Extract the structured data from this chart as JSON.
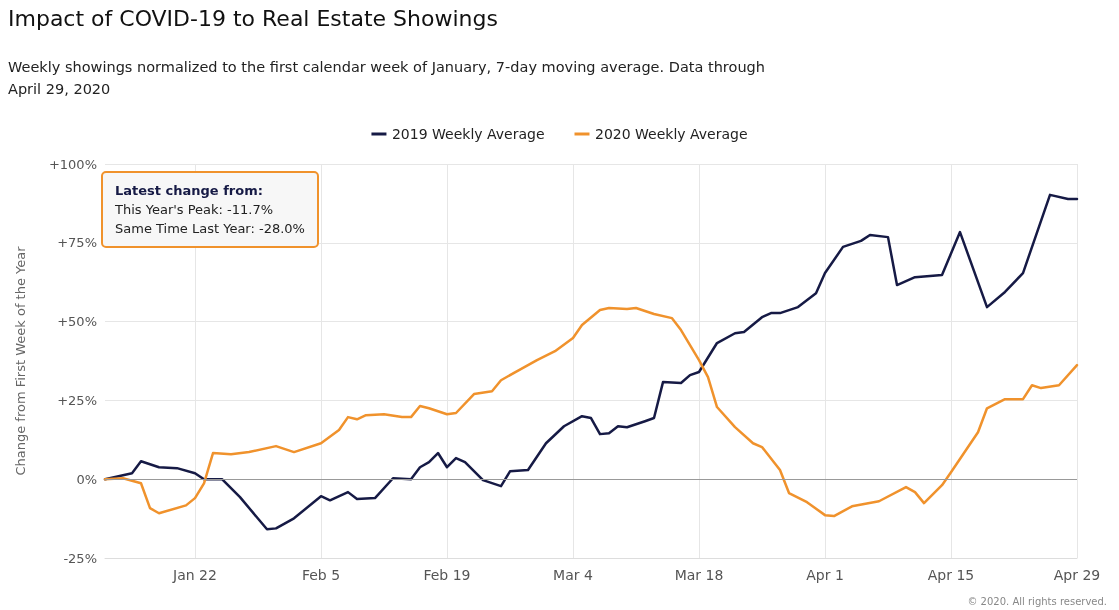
{
  "chart_data": {
    "type": "line",
    "title": "Impact of COVID-19 to Real Estate Showings",
    "subtitle": "Weekly showings normalized to the first calendar week of January, 7-day moving average. Data through April 29, 2020",
    "ylabel": "Change from First Week of the Year",
    "annotations": [
      "Latest change from:",
      "This Year's Peak: -11.7%",
      "Same Time Last Year: -28.0%",
      "© 2020. All rights reserved."
    ],
    "series": [
      {
        "name": "2019 Weekly Average",
        "color": "#161a45",
        "x": [
          "2020-01-12",
          "2020-01-15",
          "2020-01-16",
          "2020-01-18",
          "2020-01-20",
          "2020-01-22",
          "2020-01-23",
          "2020-01-25",
          "2020-01-27",
          "2020-01-30",
          "2020-01-31",
          "2020-02-02",
          "2020-02-05",
          "2020-02-06",
          "2020-02-08",
          "2020-02-09",
          "2020-02-11",
          "2020-02-13",
          "2020-02-15",
          "2020-02-16",
          "2020-02-17",
          "2020-02-18",
          "2020-02-19",
          "2020-02-20",
          "2020-02-21",
          "2020-02-23",
          "2020-02-25",
          "2020-02-26",
          "2020-02-28",
          "2020-03-01",
          "2020-03-03",
          "2020-03-05",
          "2020-03-06",
          "2020-03-07",
          "2020-03-08",
          "2020-03-09",
          "2020-03-10",
          "2020-03-12",
          "2020-03-13",
          "2020-03-14",
          "2020-03-16",
          "2020-03-17",
          "2020-03-18",
          "2020-03-20",
          "2020-03-22",
          "2020-03-23",
          "2020-03-25",
          "2020-03-26",
          "2020-03-27",
          "2020-03-29",
          "2020-03-31",
          "2020-04-01",
          "2020-04-03",
          "2020-04-05",
          "2020-04-06",
          "2020-04-08",
          "2020-04-09",
          "2020-04-11",
          "2020-04-14",
          "2020-04-16",
          "2020-04-19",
          "2020-04-21",
          "2020-04-23",
          "2020-04-26",
          "2020-04-28",
          "2020-04-29"
        ],
        "values": [
          0,
          1.9,
          5.7,
          3.8,
          3.5,
          1.9,
          0,
          0,
          -5.7,
          -15.9,
          -15.6,
          -12.4,
          -5.4,
          -6.7,
          -4.1,
          -6.3,
          -6,
          0.3,
          0,
          3.8,
          5.4,
          8.3,
          3.8,
          6.7,
          5.4,
          -0.3,
          -2.2,
          2.5,
          2.9,
          11.4,
          16.8,
          20,
          19.4,
          14.3,
          14.6,
          16.8,
          16.5,
          18.4,
          19.4,
          30.8,
          30.5,
          33,
          34,
          43.2,
          46.3,
          46.7,
          51.4,
          52.7,
          52.7,
          54.6,
          59,
          65.4,
          73.7,
          75.6,
          77.5,
          76.8,
          61.6,
          64.1,
          64.8,
          78.4,
          54.6,
          59.4,
          65.4,
          90.2,
          88.9,
          88.9
        ]
      },
      {
        "name": "2020 Weekly Average",
        "color": "#f0922c",
        "x": [
          "2020-01-12",
          "2020-01-14",
          "2020-01-16",
          "2020-01-17",
          "2020-01-18",
          "2020-01-21",
          "2020-01-22",
          "2020-01-23",
          "2020-01-24",
          "2020-01-26",
          "2020-01-28",
          "2020-01-31",
          "2020-02-02",
          "2020-02-05",
          "2020-02-07",
          "2020-02-08",
          "2020-02-09",
          "2020-02-10",
          "2020-02-12",
          "2020-02-14",
          "2020-02-15",
          "2020-02-16",
          "2020-02-17",
          "2020-02-19",
          "2020-02-20",
          "2020-02-22",
          "2020-02-24",
          "2020-02-25",
          "2020-02-27",
          "2020-02-29",
          "2020-03-02",
          "2020-03-04",
          "2020-03-05",
          "2020-03-07",
          "2020-03-08",
          "2020-03-10",
          "2020-03-11",
          "2020-03-13",
          "2020-03-15",
          "2020-03-16",
          "2020-03-18",
          "2020-03-19",
          "2020-03-20",
          "2020-03-22",
          "2020-03-24",
          "2020-03-25",
          "2020-03-27",
          "2020-03-28",
          "2020-03-30",
          "2020-04-01",
          "2020-04-02",
          "2020-04-04",
          "2020-04-07",
          "2020-04-10",
          "2020-04-11",
          "2020-04-12",
          "2020-04-14",
          "2020-04-15",
          "2020-04-18",
          "2020-04-19",
          "2020-04-21",
          "2020-04-23",
          "2020-04-24",
          "2020-04-25",
          "2020-04-27",
          "2020-04-29"
        ],
        "values": [
          0,
          0.3,
          -1.3,
          -9.2,
          -10.8,
          -8.3,
          -6,
          -1.3,
          8.3,
          7.9,
          8.6,
          10.5,
          8.6,
          11.4,
          15.6,
          19.7,
          19,
          20.3,
          20.6,
          19.7,
          19.7,
          23.2,
          22.5,
          20.6,
          21,
          27,
          27.9,
          31.4,
          34.6,
          37.8,
          40.6,
          44.8,
          48.9,
          53.7,
          54.3,
          54,
          54.3,
          52.4,
          51.1,
          47.3,
          37.8,
          32.4,
          22.9,
          16.5,
          11.4,
          10.2,
          2.9,
          -4.4,
          -7.3,
          -11.4,
          -11.7,
          -8.6,
          -7,
          -2.5,
          -4.1,
          -7.6,
          -1.9,
          2.2,
          14.9,
          22.5,
          25.4,
          25.4,
          29.8,
          28.9,
          29.8,
          36.2
        ]
      }
    ],
    "xlim": [
      "2020-01-12",
      "2020-04-29"
    ],
    "xticks": [
      {
        "value": "2020-01-22",
        "label": "Jan 22"
      },
      {
        "value": "2020-02-05",
        "label": "Feb 5"
      },
      {
        "value": "2020-02-19",
        "label": "Feb 19"
      },
      {
        "value": "2020-03-04",
        "label": "Mar 4"
      },
      {
        "value": "2020-03-18",
        "label": "Mar 18"
      },
      {
        "value": "2020-04-01",
        "label": "Apr 1"
      },
      {
        "value": "2020-04-15",
        "label": "Apr 15"
      },
      {
        "value": "2020-04-29",
        "label": "Apr 29"
      }
    ],
    "ylim": [
      -25,
      100
    ],
    "yticks": [
      {
        "value": -25,
        "label": "-25%"
      },
      {
        "value": 0,
        "label": "0%"
      },
      {
        "value": 25,
        "label": "+25%"
      },
      {
        "value": 50,
        "label": "+50%"
      },
      {
        "value": 75,
        "label": "+75%"
      },
      {
        "value": 100,
        "label": "+100%"
      }
    ],
    "grid": true,
    "legend": "top",
    "marker": "none",
    "line_style": "solid"
  }
}
